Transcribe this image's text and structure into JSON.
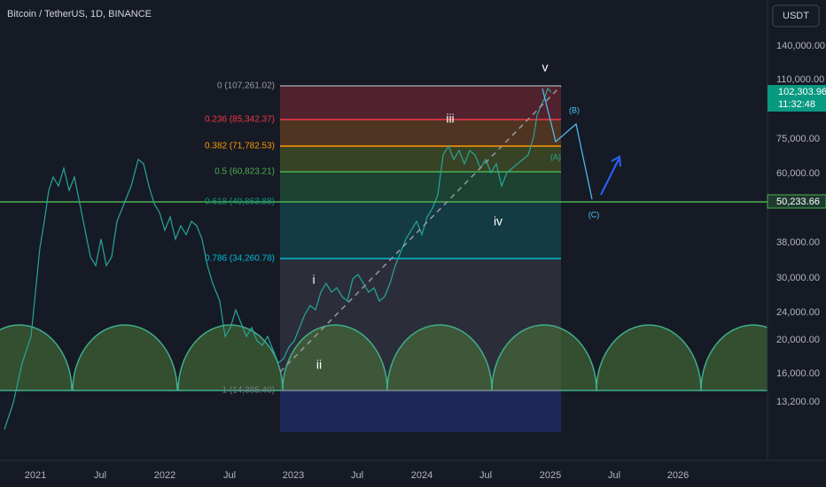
{
  "header": {
    "symbol": "Bitcoin / TetherUS, 1D, BINANCE",
    "currency": "USDT"
  },
  "price_axis": {
    "labels": [
      "140,000.00",
      "110,000.00",
      "75,000.00",
      "60,000.00",
      "38,000.00",
      "30,000.00",
      "24,000.00",
      "20,000.00",
      "16,000.00",
      "13,200.00"
    ]
  },
  "price_tags": {
    "last_price": "102,303.96",
    "countdown": "11:32:48",
    "line_level": "50,233.66"
  },
  "time_axis": {
    "labels": [
      "2021",
      "Jul",
      "2022",
      "Jul",
      "2023",
      "Jul",
      "2024",
      "Jul",
      "2025",
      "Jul",
      "2026"
    ]
  },
  "fib_levels": [
    "0 (107,261.02)",
    "0.236 (85,342.37)",
    "0.382 (71,782.53)",
    "0.5 (60,823.21)",
    "0.618 (49,863.88)",
    "0.786 (34,260.78)",
    "1 (14,385.40)"
  ],
  "wave_labels": [
    "v",
    "iii",
    "iv",
    "i",
    "ii",
    "(B)",
    "(A)",
    "(C)"
  ]
}
